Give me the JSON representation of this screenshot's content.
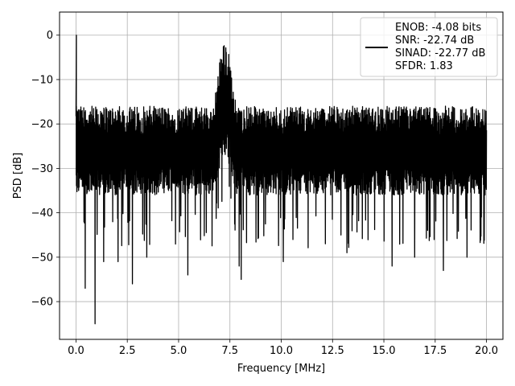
{
  "chart_data": {
    "type": "line",
    "xlabel": "Frequency [MHz]",
    "ylabel": "PSD [dB]",
    "xlim": [
      -0.8,
      20.8
    ],
    "ylim": [
      -68.5,
      5.2
    ],
    "xticks": [
      0.0,
      2.5,
      5.0,
      7.5,
      10.0,
      12.5,
      15.0,
      17.5,
      20.0
    ],
    "xtick_labels": [
      "0.0",
      "2.5",
      "5.0",
      "7.5",
      "10.0",
      "12.5",
      "15.0",
      "17.5",
      "20.0"
    ],
    "yticks": [
      0,
      -10,
      -20,
      -30,
      -40,
      -50,
      -60
    ],
    "ytick_labels": [
      "0",
      "−10",
      "−20",
      "−30",
      "−40",
      "−50",
      "−60"
    ],
    "grid": true,
    "legend": {
      "placement": "upper right",
      "entries": [
        "ENOB: -4.08 bits",
        "SNR: -22.74 dB",
        "SINAD: -22.77 dB",
        "SFDR: 1.83"
      ]
    },
    "series": [
      {
        "color": "#000000",
        "x_range": [
          0,
          20
        ],
        "peak": {
          "x": 0.02,
          "y": 0
        },
        "noise_floor": {
          "top": -16,
          "center": -26,
          "bottom": -36
        },
        "bump": {
          "x_range": [
            6.7,
            7.8
          ],
          "top": -2,
          "center": -15
        },
        "deep_dips": [
          {
            "x": 0.93,
            "y": -65
          },
          {
            "x": 0.45,
            "y": -57
          },
          {
            "x": 2.75,
            "y": -56
          },
          {
            "x": 8.05,
            "y": -55
          },
          {
            "x": 7.95,
            "y": -52
          },
          {
            "x": 1.35,
            "y": -51
          },
          {
            "x": 2.05,
            "y": -51
          },
          {
            "x": 3.45,
            "y": -50
          },
          {
            "x": 5.45,
            "y": -54
          },
          {
            "x": 10.1,
            "y": -51
          },
          {
            "x": 15.4,
            "y": -52
          },
          {
            "x": 17.9,
            "y": -53
          },
          {
            "x": 19.05,
            "y": -50
          },
          {
            "x": 13.2,
            "y": -49
          },
          {
            "x": 16.5,
            "y": -50
          }
        ]
      }
    ]
  }
}
